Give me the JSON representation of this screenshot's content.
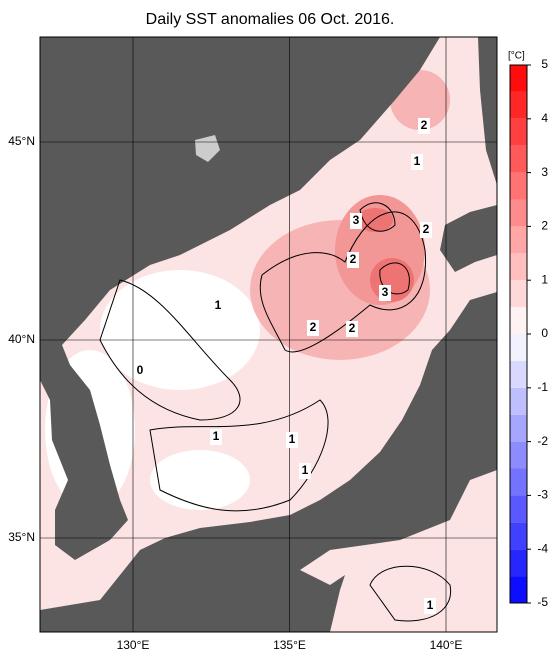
{
  "title": "Daily SST anomalies 06 Oct. 2016.",
  "map": {
    "lon_ticks": [
      {
        "value": 130,
        "label": "130°E"
      },
      {
        "value": 135,
        "label": "135°E"
      },
      {
        "value": 140,
        "label": "140°E"
      }
    ],
    "lat_ticks": [
      {
        "value": 35,
        "label": "35°N"
      },
      {
        "value": 40,
        "label": "40°N"
      },
      {
        "value": 45,
        "label": "45°N"
      }
    ],
    "contour_labels": [
      2,
      1,
      3,
      2,
      2,
      3,
      2,
      2,
      1,
      0,
      1,
      1,
      1,
      1
    ]
  },
  "colorbar": {
    "unit": "[°C]",
    "range": [
      -5,
      5
    ],
    "ticks": [
      5,
      4,
      3,
      2,
      1,
      0,
      -1,
      -2,
      -3,
      -4,
      -5
    ]
  }
}
